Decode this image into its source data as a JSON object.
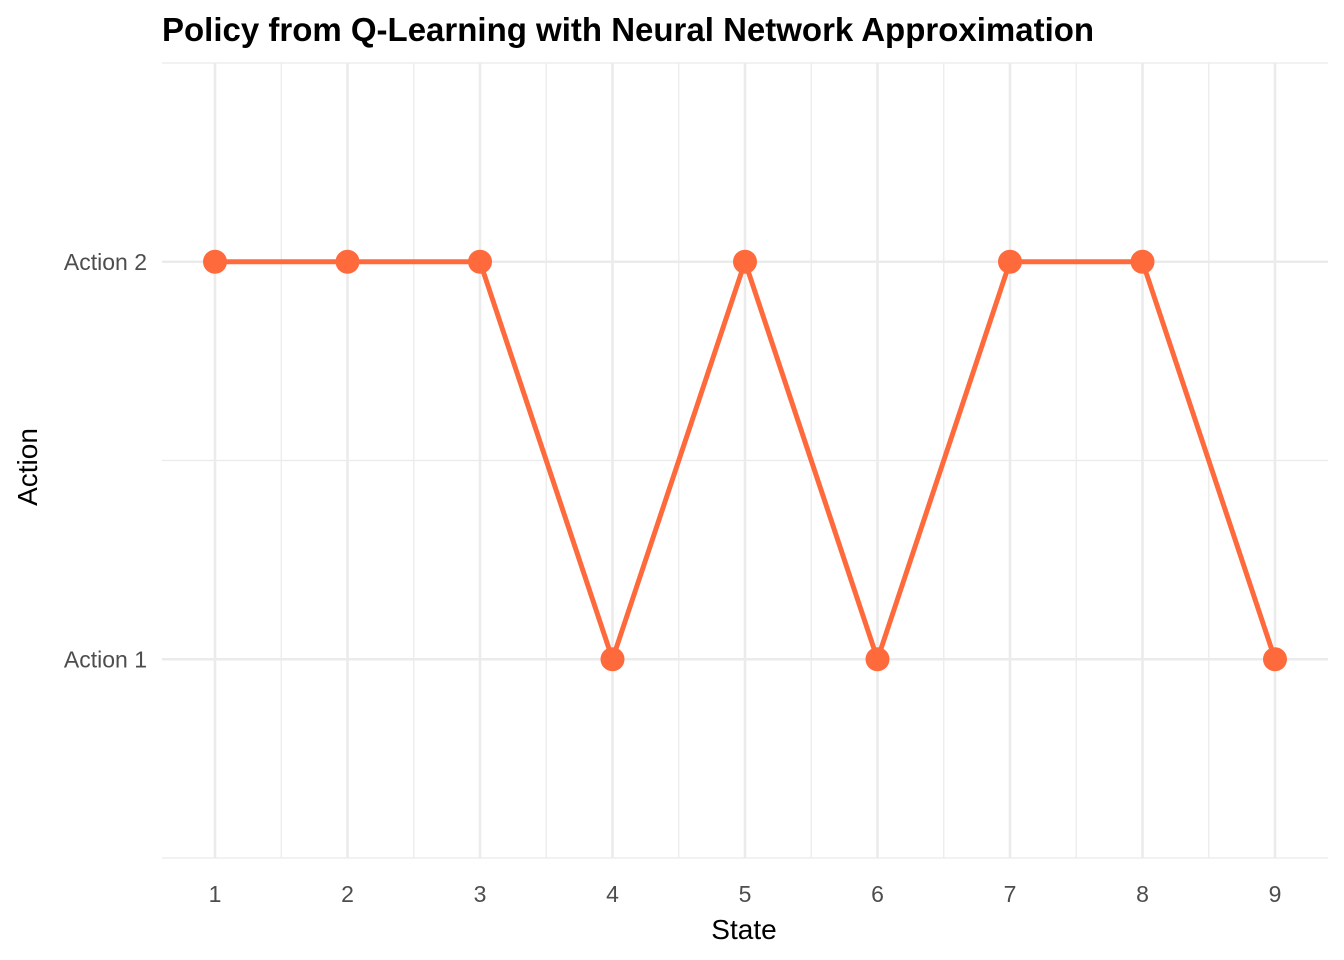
{
  "chart_data": {
    "type": "line",
    "title": "Policy from Q-Learning with Neural Network Approximation",
    "xlabel": "State",
    "ylabel": "Action",
    "x": [
      1,
      2,
      3,
      4,
      5,
      6,
      7,
      8,
      9
    ],
    "y_categories": [
      "Action 1",
      "Action 2"
    ],
    "series": [
      {
        "values": [
          "Action 2",
          "Action 2",
          "Action 2",
          "Action 1",
          "Action 2",
          "Action 1",
          "Action 2",
          "Action 2",
          "Action 1"
        ],
        "color": "#ff6a3d"
      }
    ],
    "xlim": [
      0.6,
      9.4
    ],
    "ylim": [
      0.5,
      2.5
    ],
    "grid": true,
    "legend": "none",
    "markers": true
  }
}
